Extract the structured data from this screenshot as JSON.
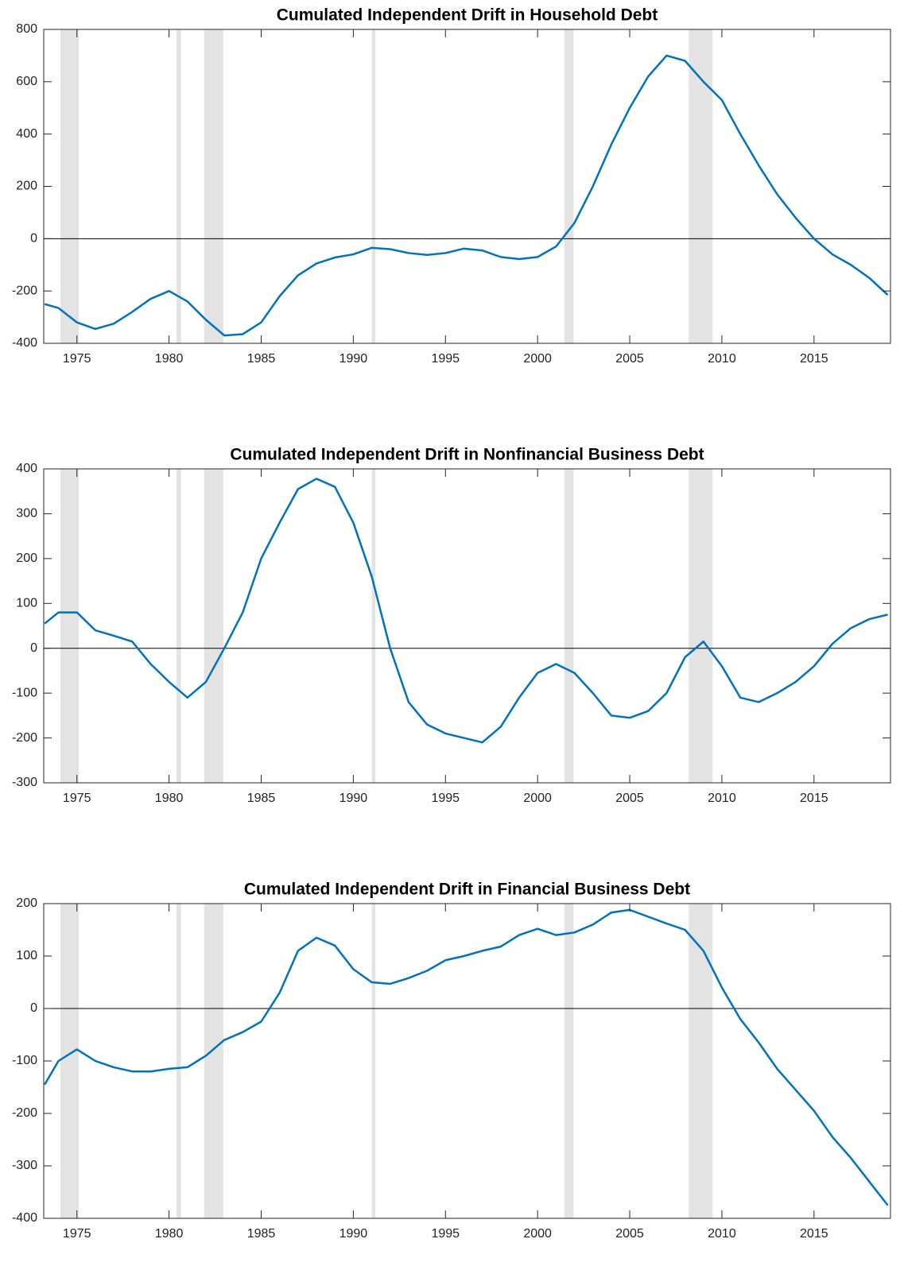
{
  "chart_data": [
    {
      "type": "line",
      "title": "Cumulated Independent Drift in Household Debt",
      "x": [
        1973.25,
        1974,
        1975,
        1976,
        1977,
        1978,
        1979,
        1980,
        1981,
        1982,
        1983,
        1984,
        1985,
        1986,
        1987,
        1988,
        1989,
        1990,
        1991,
        1992,
        1993,
        1994,
        1995,
        1996,
        1997,
        1998,
        1999,
        2000,
        2001,
        2002,
        2003,
        2004,
        2005,
        2006,
        2007,
        2008,
        2009,
        2010,
        2011,
        2012,
        2013,
        2014,
        2015,
        2016,
        2017,
        2018,
        2019
      ],
      "series": [
        {
          "color": "#0072bd",
          "values": [
            -250,
            -265,
            -320,
            -345,
            -325,
            -280,
            -230,
            -200,
            -240,
            -310,
            -370,
            -365,
            -320,
            -220,
            -140,
            -95,
            -72,
            -60,
            -35,
            -40,
            -55,
            -62,
            -55,
            -38,
            -45,
            -70,
            -78,
            -70,
            -30,
            60,
            200,
            360,
            500,
            620,
            700,
            680,
            600,
            530,
            400,
            280,
            170,
            80,
            0,
            -60,
            -100,
            -150,
            -215
          ]
        }
      ],
      "xlim": [
        1973.2,
        2019.15
      ],
      "xticks": [
        1975,
        1980,
        1985,
        1990,
        1995,
        2000,
        2005,
        2010,
        2015
      ],
      "ylim": [
        -400,
        800
      ],
      "yticks": [
        -400,
        -200,
        0,
        200,
        400,
        600,
        800
      ],
      "hline": 0,
      "shaded": [
        [
          1974.1,
          1975.1
        ],
        [
          1980.4,
          1980.65
        ],
        [
          1981.9,
          1982.95
        ],
        [
          1991.0,
          1991.2
        ],
        [
          2001.45,
          2001.95
        ],
        [
          2008.2,
          2009.5
        ]
      ]
    },
    {
      "type": "line",
      "title": "Cumulated Independent Drift in Nonfinancial Business Debt",
      "x": [
        1973.25,
        1974,
        1975,
        1976,
        1977,
        1978,
        1979,
        1980,
        1981,
        1982,
        1983,
        1984,
        1985,
        1986,
        1987,
        1988,
        1989,
        1990,
        1991,
        1992,
        1993,
        1994,
        1995,
        1996,
        1997,
        1998,
        1999,
        2000,
        2001,
        2002,
        2003,
        2004,
        2005,
        2006,
        2007,
        2008,
        2009,
        2010,
        2011,
        2012,
        2013,
        2014,
        2015,
        2016,
        2017,
        2018,
        2019
      ],
      "series": [
        {
          "color": "#0072bd",
          "values": [
            55,
            80,
            80,
            40,
            28,
            15,
            -35,
            -75,
            -110,
            -75,
            0,
            80,
            200,
            280,
            355,
            378,
            360,
            280,
            160,
            0,
            -120,
            -170,
            -190,
            -200,
            -210,
            -175,
            -110,
            -55,
            -35,
            -55,
            -100,
            -150,
            -155,
            -140,
            -100,
            -20,
            15,
            -40,
            -110,
            -120,
            -100,
            -75,
            -40,
            10,
            45,
            65,
            75
          ]
        }
      ],
      "xlim": [
        1973.2,
        2019.15
      ],
      "xticks": [
        1975,
        1980,
        1985,
        1990,
        1995,
        2000,
        2005,
        2010,
        2015
      ],
      "ylim": [
        -300,
        400
      ],
      "yticks": [
        -300,
        -200,
        -100,
        0,
        100,
        200,
        300,
        400
      ],
      "hline": 0,
      "shaded": [
        [
          1974.1,
          1975.1
        ],
        [
          1980.4,
          1980.65
        ],
        [
          1981.9,
          1982.95
        ],
        [
          1991.0,
          1991.2
        ],
        [
          2001.45,
          2001.95
        ],
        [
          2008.2,
          2009.5
        ]
      ]
    },
    {
      "type": "line",
      "title": "Cumulated Independent Drift in Financial Business Debt",
      "x": [
        1973.25,
        1974,
        1975,
        1976,
        1977,
        1978,
        1979,
        1980,
        1981,
        1982,
        1983,
        1984,
        1985,
        1986,
        1987,
        1988,
        1989,
        1990,
        1991,
        1992,
        1993,
        1994,
        1995,
        1996,
        1997,
        1998,
        1999,
        2000,
        2001,
        2002,
        2003,
        2004,
        2005,
        2006,
        2007,
        2008,
        2009,
        2010,
        2011,
        2012,
        2013,
        2014,
        2015,
        2016,
        2017,
        2018,
        2019
      ],
      "series": [
        {
          "color": "#0072bd",
          "values": [
            -145,
            -100,
            -78,
            -100,
            -112,
            -120,
            -120,
            -115,
            -112,
            -90,
            -60,
            -45,
            -25,
            30,
            110,
            135,
            120,
            75,
            50,
            47,
            58,
            72,
            92,
            100,
            110,
            118,
            140,
            152,
            140,
            145,
            160,
            183,
            188,
            175,
            162,
            150,
            110,
            40,
            -20,
            -65,
            -115,
            -155,
            -195,
            -245,
            -285,
            -330,
            -375
          ]
        }
      ],
      "xlim": [
        1973.2,
        2019.15
      ],
      "xticks": [
        1975,
        1980,
        1985,
        1990,
        1995,
        2000,
        2005,
        2010,
        2015
      ],
      "ylim": [
        -400,
        200
      ],
      "yticks": [
        -400,
        -300,
        -200,
        -100,
        0,
        100,
        200
      ],
      "hline": 0,
      "shaded": [
        [
          1974.1,
          1975.1
        ],
        [
          1980.4,
          1980.65
        ],
        [
          1981.9,
          1982.95
        ],
        [
          1991.0,
          1991.2
        ],
        [
          2001.45,
          2001.95
        ],
        [
          2008.2,
          2009.5
        ]
      ]
    }
  ]
}
